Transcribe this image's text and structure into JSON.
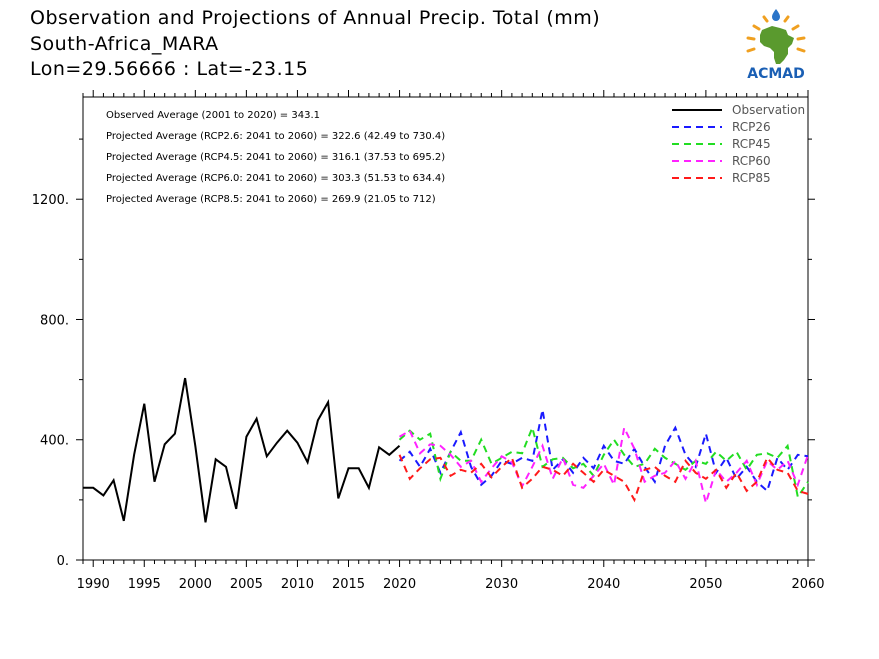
{
  "header": {
    "title_line1": "Observation and Projections of Annual Precip. Total (mm)",
    "title_line2": "South-Africa_MARA",
    "title_line3": "Lon=29.56666 : Lat=-23.15"
  },
  "logo": {
    "text": "ACMAD",
    "colors": {
      "africa": "#5a9a2e",
      "rays": "#f0a020",
      "drop": "#2a74c8",
      "text": "#1a5fb4"
    }
  },
  "annotations": [
    "Observed Average (2001 to 2020) = 343.1",
    "Projected Average (RCP2.6: 2041 to 2060) = 322.6 (42.49 to 730.4)",
    "Projected Average (RCP4.5: 2041 to 2060) = 316.1 (37.53 to 695.2)",
    "Projected Average (RCP6.0: 2041 to 2060) = 303.3 (51.53 to 634.4)",
    "Projected Average (RCP8.5: 2041 to 2060) = 269.9 (21.05 to 712)"
  ],
  "chart_data": {
    "type": "line",
    "title": "Observation and Projections of Annual Precip. Total (mm)",
    "xlim": [
      1989,
      2060
    ],
    "ylim": [
      0,
      1540
    ],
    "y_ticks": [
      0,
      400,
      800,
      1200
    ],
    "y_tick_labels": [
      "0.",
      "400.",
      "800.",
      "1200."
    ],
    "x_ticks": [
      1990,
      1995,
      2000,
      2005,
      2010,
      2015,
      2020,
      2030,
      2040,
      2050,
      2060
    ],
    "x_tick_labels": [
      "1990",
      "1995",
      "2000",
      "2005",
      "2010",
      "2015",
      "2020",
      "2030",
      "2040",
      "2050",
      "2060"
    ],
    "legend_position": "top-right",
    "series": [
      {
        "name": "Observation",
        "color": "#000000",
        "dashed": false,
        "x": [
          1989,
          1990,
          1991,
          1992,
          1993,
          1994,
          1995,
          1996,
          1997,
          1998,
          1999,
          2000,
          2001,
          2002,
          2003,
          2004,
          2005,
          2006,
          2007,
          2008,
          2009,
          2010,
          2011,
          2012,
          2013,
          2014,
          2015,
          2016,
          2017,
          2018,
          2019,
          2020
        ],
        "y": [
          240,
          240,
          215,
          265,
          130,
          350,
          520,
          260,
          385,
          420,
          605,
          380,
          125,
          335,
          310,
          170,
          410,
          470,
          345,
          390,
          430,
          390,
          325,
          465,
          525,
          205,
          305,
          305,
          240,
          375,
          350,
          380
        ]
      },
      {
        "name": "RCP26",
        "color": "#1a1aff",
        "dashed": true,
        "x": [
          2020,
          2021,
          2022,
          2023,
          2024,
          2025,
          2026,
          2027,
          2028,
          2029,
          2030,
          2031,
          2032,
          2033,
          2034,
          2035,
          2036,
          2037,
          2038,
          2039,
          2040,
          2041,
          2042,
          2043,
          2044,
          2045,
          2046,
          2047,
          2048,
          2049,
          2050,
          2051,
          2052,
          2053,
          2054,
          2055,
          2056,
          2057,
          2058,
          2059,
          2060
        ],
        "y": [
          330,
          360,
          310,
          370,
          290,
          360,
          425,
          310,
          250,
          280,
          330,
          320,
          340,
          330,
          500,
          300,
          335,
          290,
          340,
          305,
          380,
          330,
          320,
          370,
          310,
          260,
          380,
          440,
          350,
          310,
          420,
          290,
          340,
          270,
          310,
          260,
          230,
          340,
          300,
          350,
          345
        ]
      },
      {
        "name": "RCP45",
        "color": "#22dd22",
        "dashed": true,
        "x": [
          2020,
          2021,
          2022,
          2023,
          2024,
          2025,
          2026,
          2027,
          2028,
          2029,
          2030,
          2031,
          2032,
          2033,
          2034,
          2035,
          2036,
          2037,
          2038,
          2039,
          2040,
          2041,
          2042,
          2043,
          2044,
          2045,
          2046,
          2047,
          2048,
          2049,
          2050,
          2051,
          2052,
          2053,
          2054,
          2055,
          2056,
          2057,
          2058,
          2059,
          2060
        ],
        "y": [
          400,
          430,
          400,
          420,
          270,
          360,
          330,
          330,
          400,
          320,
          340,
          360,
          355,
          440,
          310,
          335,
          340,
          305,
          320,
          280,
          350,
          400,
          350,
          310,
          320,
          370,
          340,
          320,
          300,
          330,
          320,
          360,
          330,
          360,
          300,
          350,
          355,
          340,
          380,
          210,
          260
        ]
      },
      {
        "name": "RCP60",
        "color": "#ff22ff",
        "dashed": true,
        "x": [
          2020,
          2021,
          2022,
          2023,
          2024,
          2025,
          2026,
          2027,
          2028,
          2029,
          2030,
          2031,
          2032,
          2033,
          2034,
          2035,
          2036,
          2037,
          2038,
          2039,
          2040,
          2041,
          2042,
          2043,
          2044,
          2045,
          2046,
          2047,
          2048,
          2049,
          2050,
          2051,
          2052,
          2053,
          2054,
          2055,
          2056,
          2057,
          2058,
          2059,
          2060
        ],
        "y": [
          410,
          430,
          355,
          385,
          380,
          350,
          310,
          330,
          260,
          305,
          345,
          325,
          245,
          310,
          380,
          270,
          340,
          250,
          240,
          280,
          320,
          250,
          440,
          370,
          260,
          280,
          290,
          330,
          270,
          330,
          190,
          300,
          260,
          290,
          330,
          250,
          330,
          300,
          330,
          250,
          350
        ]
      },
      {
        "name": "RCP85",
        "color": "#ff1a1a",
        "dashed": true,
        "x": [
          2020,
          2021,
          2022,
          2023,
          2024,
          2025,
          2026,
          2027,
          2028,
          2029,
          2030,
          2031,
          2032,
          2033,
          2034,
          2035,
          2036,
          2037,
          2038,
          2039,
          2040,
          2041,
          2042,
          2043,
          2044,
          2045,
          2046,
          2047,
          2048,
          2049,
          2050,
          2051,
          2052,
          2053,
          2054,
          2055,
          2056,
          2057,
          2058,
          2059,
          2060
        ],
        "y": [
          350,
          270,
          305,
          335,
          340,
          280,
          300,
          290,
          320,
          275,
          310,
          340,
          240,
          270,
          310,
          300,
          280,
          320,
          290,
          260,
          300,
          280,
          260,
          200,
          300,
          310,
          280,
          260,
          330,
          290,
          270,
          300,
          240,
          290,
          230,
          260,
          340,
          300,
          290,
          230,
          220
        ]
      }
    ]
  }
}
